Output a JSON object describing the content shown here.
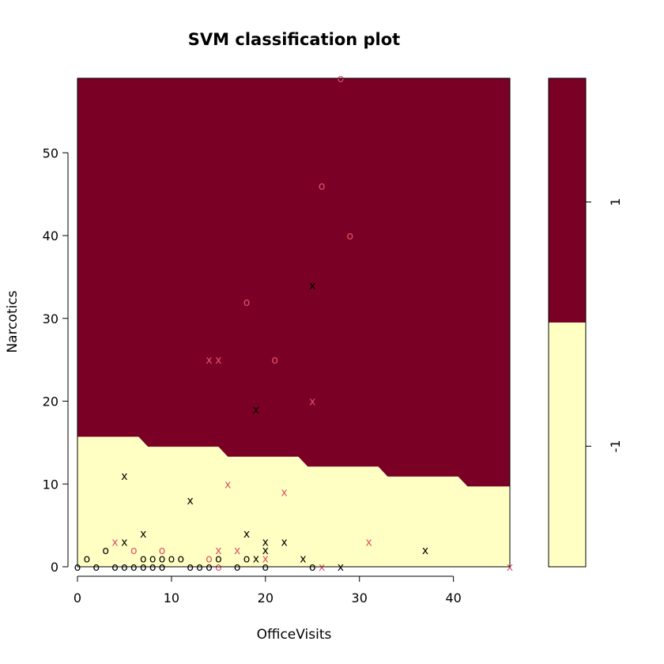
{
  "chart_data": {
    "type": "scatter",
    "title": "SVM classification plot",
    "xlabel": "OfficeVisits",
    "ylabel": "Narcotics",
    "xlim": [
      0,
      46
    ],
    "ylim": [
      0,
      59
    ],
    "xticks": [
      0,
      10,
      20,
      30,
      40
    ],
    "yticks": [
      0,
      10,
      20,
      30,
      40,
      50
    ],
    "grid": false,
    "colors": {
      "class_1_region": "#7a0026",
      "class_minus1_region": "#ffffc3",
      "class_minus1_points": "#000000",
      "class_1_points": "#df536b"
    },
    "legend": {
      "labels": [
        "1",
        "-1"
      ],
      "placement": "right",
      "split_value": 29.5
    },
    "decision_boundary": [
      [
        0,
        15.7
      ],
      [
        6.5,
        15.7
      ],
      [
        7.5,
        14.5
      ],
      [
        15,
        14.5
      ],
      [
        16,
        13.3
      ],
      [
        23.5,
        13.3
      ],
      [
        24.5,
        12.1
      ],
      [
        32,
        12.1
      ],
      [
        33,
        10.9
      ],
      [
        40.5,
        10.9
      ],
      [
        41.5,
        9.7
      ],
      [
        46,
        9.7
      ]
    ],
    "points": [
      {
        "x": 28,
        "y": 59,
        "class": "1",
        "marker": "o"
      },
      {
        "x": 26,
        "y": 46,
        "class": "1",
        "marker": "o"
      },
      {
        "x": 29,
        "y": 40,
        "class": "1",
        "marker": "o"
      },
      {
        "x": 25,
        "y": 34,
        "class": "-1",
        "marker": "x"
      },
      {
        "x": 18,
        "y": 32,
        "class": "1",
        "marker": "o"
      },
      {
        "x": 14,
        "y": 25,
        "class": "1",
        "marker": "x"
      },
      {
        "x": 15,
        "y": 25,
        "class": "1",
        "marker": "x"
      },
      {
        "x": 21,
        "y": 25,
        "class": "1",
        "marker": "o"
      },
      {
        "x": 19,
        "y": 19,
        "class": "-1",
        "marker": "x"
      },
      {
        "x": 25,
        "y": 20,
        "class": "1",
        "marker": "x"
      },
      {
        "x": 5,
        "y": 11,
        "class": "-1",
        "marker": "x"
      },
      {
        "x": 16,
        "y": 10,
        "class": "1",
        "marker": "x"
      },
      {
        "x": 22,
        "y": 9,
        "class": "1",
        "marker": "x"
      },
      {
        "x": 12,
        "y": 8,
        "class": "-1",
        "marker": "x"
      },
      {
        "x": 7,
        "y": 4,
        "class": "-1",
        "marker": "x"
      },
      {
        "x": 18,
        "y": 4,
        "class": "-1",
        "marker": "x"
      },
      {
        "x": 4,
        "y": 3,
        "class": "1",
        "marker": "x"
      },
      {
        "x": 5,
        "y": 3,
        "class": "-1",
        "marker": "x"
      },
      {
        "x": 20,
        "y": 3,
        "class": "-1",
        "marker": "x"
      },
      {
        "x": 22,
        "y": 3,
        "class": "-1",
        "marker": "x"
      },
      {
        "x": 31,
        "y": 3,
        "class": "1",
        "marker": "x"
      },
      {
        "x": 3,
        "y": 2,
        "class": "-1",
        "marker": "o"
      },
      {
        "x": 6,
        "y": 2,
        "class": "1",
        "marker": "o"
      },
      {
        "x": 9,
        "y": 2,
        "class": "1",
        "marker": "o"
      },
      {
        "x": 15,
        "y": 2,
        "class": "1",
        "marker": "x"
      },
      {
        "x": 17,
        "y": 2,
        "class": "1",
        "marker": "x"
      },
      {
        "x": 20,
        "y": 2,
        "class": "-1",
        "marker": "x"
      },
      {
        "x": 37,
        "y": 2,
        "class": "-1",
        "marker": "x"
      },
      {
        "x": 1,
        "y": 1,
        "class": "-1",
        "marker": "o"
      },
      {
        "x": 7,
        "y": 1,
        "class": "-1",
        "marker": "o"
      },
      {
        "x": 8,
        "y": 1,
        "class": "-1",
        "marker": "o"
      },
      {
        "x": 9,
        "y": 1,
        "class": "-1",
        "marker": "o"
      },
      {
        "x": 10,
        "y": 1,
        "class": "-1",
        "marker": "o"
      },
      {
        "x": 11,
        "y": 1,
        "class": "-1",
        "marker": "o"
      },
      {
        "x": 14,
        "y": 1,
        "class": "1",
        "marker": "o"
      },
      {
        "x": 15,
        "y": 1,
        "class": "-1",
        "marker": "o"
      },
      {
        "x": 18,
        "y": 1,
        "class": "-1",
        "marker": "o"
      },
      {
        "x": 19,
        "y": 1,
        "class": "-1",
        "marker": "x"
      },
      {
        "x": 20,
        "y": 1,
        "class": "1",
        "marker": "x"
      },
      {
        "x": 24,
        "y": 1,
        "class": "-1",
        "marker": "x"
      },
      {
        "x": 0,
        "y": 0,
        "class": "-1",
        "marker": "o"
      },
      {
        "x": 2,
        "y": 0,
        "class": "-1",
        "marker": "o"
      },
      {
        "x": 4,
        "y": 0,
        "class": "-1",
        "marker": "o"
      },
      {
        "x": 5,
        "y": 0,
        "class": "-1",
        "marker": "o"
      },
      {
        "x": 6,
        "y": 0,
        "class": "-1",
        "marker": "o"
      },
      {
        "x": 7,
        "y": 0,
        "class": "-1",
        "marker": "o"
      },
      {
        "x": 8,
        "y": 0,
        "class": "-1",
        "marker": "o"
      },
      {
        "x": 9,
        "y": 0,
        "class": "-1",
        "marker": "o"
      },
      {
        "x": 12,
        "y": 0,
        "class": "-1",
        "marker": "o"
      },
      {
        "x": 13,
        "y": 0,
        "class": "-1",
        "marker": "o"
      },
      {
        "x": 14,
        "y": 0,
        "class": "-1",
        "marker": "o"
      },
      {
        "x": 15,
        "y": 0,
        "class": "1",
        "marker": "o"
      },
      {
        "x": 17,
        "y": 0,
        "class": "-1",
        "marker": "o"
      },
      {
        "x": 20,
        "y": 0,
        "class": "-1",
        "marker": "o"
      },
      {
        "x": 25,
        "y": 0,
        "class": "-1",
        "marker": "o"
      },
      {
        "x": 26,
        "y": 0,
        "class": "1",
        "marker": "x"
      },
      {
        "x": 28,
        "y": 0,
        "class": "-1",
        "marker": "x"
      },
      {
        "x": 46,
        "y": 0,
        "class": "1",
        "marker": "x"
      }
    ]
  }
}
